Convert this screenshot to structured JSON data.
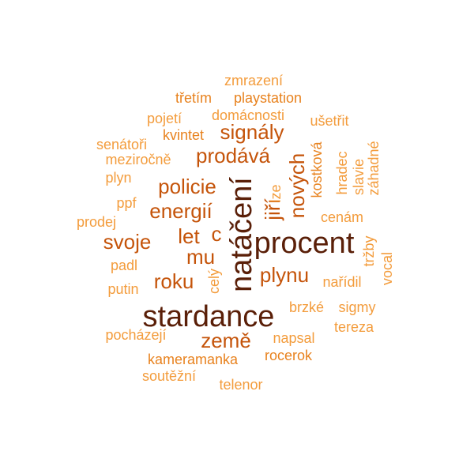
{
  "palette": {
    "lightest": "#f39c3c",
    "light": "#e8821e",
    "mid": "#c5540a",
    "dark": "#8f350a",
    "darkest": "#5a1f08"
  },
  "words": [
    {
      "id": "zmrazeni",
      "text": "zmrazení"
    },
    {
      "id": "tretim",
      "text": "třetím"
    },
    {
      "id": "playstation",
      "text": "playstation"
    },
    {
      "id": "pojeti",
      "text": "pojetí"
    },
    {
      "id": "domacnosti",
      "text": "domácnosti"
    },
    {
      "id": "usetrit",
      "text": "ušetřit"
    },
    {
      "id": "kvintet",
      "text": "kvintet"
    },
    {
      "id": "signaly",
      "text": "signály"
    },
    {
      "id": "senatori",
      "text": "senátoři"
    },
    {
      "id": "mezirocne",
      "text": "meziročně"
    },
    {
      "id": "prodava",
      "text": "prodává"
    },
    {
      "id": "plyn",
      "text": "plyn"
    },
    {
      "id": "policie",
      "text": "policie"
    },
    {
      "id": "ppf",
      "text": "ppf"
    },
    {
      "id": "energii",
      "text": "energií"
    },
    {
      "id": "prodej",
      "text": "prodej"
    },
    {
      "id": "svoje",
      "text": "svoje"
    },
    {
      "id": "let",
      "text": "let"
    },
    {
      "id": "c",
      "text": "c"
    },
    {
      "id": "padl",
      "text": "padl"
    },
    {
      "id": "mu",
      "text": "mu"
    },
    {
      "id": "roku",
      "text": "roku"
    },
    {
      "id": "putin",
      "text": "putin"
    },
    {
      "id": "stardance",
      "text": "stardance"
    },
    {
      "id": "pochazeji",
      "text": "pocházejí"
    },
    {
      "id": "zeme",
      "text": "země"
    },
    {
      "id": "napsal",
      "text": "napsal"
    },
    {
      "id": "kameramanka",
      "text": "kameramanka"
    },
    {
      "id": "rocerok",
      "text": "rocerok"
    },
    {
      "id": "soutezni",
      "text": "soutěžní"
    },
    {
      "id": "telenor",
      "text": "telenor"
    },
    {
      "id": "nataceni",
      "text": "natáčení"
    },
    {
      "id": "procent",
      "text": "procent"
    },
    {
      "id": "jiri",
      "text": "jiří"
    },
    {
      "id": "novych",
      "text": "nových"
    },
    {
      "id": "lze",
      "text": "lze"
    },
    {
      "id": "kostkova",
      "text": "kostková"
    },
    {
      "id": "hradec",
      "text": "hradec"
    },
    {
      "id": "slavie",
      "text": "slavie"
    },
    {
      "id": "zahadne",
      "text": "záhadné"
    },
    {
      "id": "cenam",
      "text": "cenám"
    },
    {
      "id": "trzby",
      "text": "tržby"
    },
    {
      "id": "vocal",
      "text": "vocal"
    },
    {
      "id": "plynu",
      "text": "plynu"
    },
    {
      "id": "narizdil",
      "text": "nařídil"
    },
    {
      "id": "cely",
      "text": "celý"
    },
    {
      "id": "brzke",
      "text": "brzké"
    },
    {
      "id": "sigmy",
      "text": "sigmy"
    },
    {
      "id": "tereza",
      "text": "tereza"
    }
  ]
}
